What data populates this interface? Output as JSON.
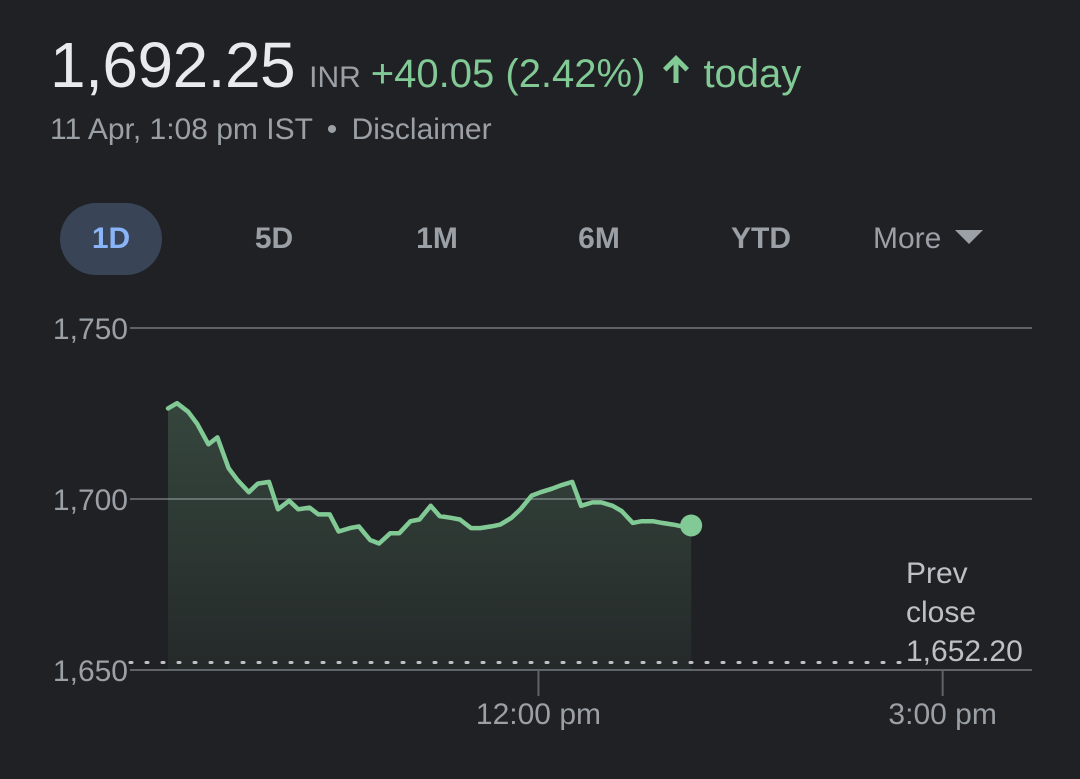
{
  "quote": {
    "price": "1,692.25",
    "currency": "INR",
    "change": "+40.05 (2.42%)",
    "direction_icon": "arrow-up-icon",
    "period": "today",
    "timestamp": "11 Apr, 1:08 pm IST",
    "separator": "•",
    "disclaimer": "Disclaimer"
  },
  "tabs": [
    {
      "label": "1D",
      "active": true
    },
    {
      "label": "5D",
      "active": false
    },
    {
      "label": "1M",
      "active": false
    },
    {
      "label": "6M",
      "active": false
    },
    {
      "label": "YTD",
      "active": false
    }
  ],
  "more": {
    "label": "More",
    "icon": "caret-down-icon"
  },
  "colors": {
    "positive": "#81c995",
    "active_tab_bg": "#394457",
    "active_tab_text": "#8ab4f8",
    "background": "#202124"
  },
  "chart_data": {
    "type": "area",
    "x_unit": "time (IST)",
    "xlim": [
      "09:15",
      "15:30"
    ],
    "ylim": [
      1650,
      1750
    ],
    "y_ticks": [
      {
        "value": 1650,
        "label": "1,650"
      },
      {
        "value": 1700,
        "label": "1,700"
      },
      {
        "value": 1750,
        "label": "1,750"
      }
    ],
    "x_ticks": [
      {
        "value": "12:00",
        "label": "12:00 pm"
      },
      {
        "value": "15:00",
        "label": "3:00 pm"
      }
    ],
    "prev_close": {
      "value": 1652.2,
      "label_lines": [
        "Prev",
        "close",
        "1,652.20"
      ]
    },
    "series": [
      {
        "x": [
          "09:15",
          "09:19",
          "09:24",
          "09:28",
          "09:33",
          "09:37",
          "09:42",
          "09:46",
          "09:51",
          "09:55",
          "10:00",
          "10:04",
          "10:09",
          "10:13",
          "10:18",
          "10:22",
          "10:27",
          "10:31",
          "10:36",
          "10:40",
          "10:45",
          "10:49",
          "10:54",
          "10:58",
          "11:03",
          "11:07",
          "11:12",
          "11:16",
          "11:21",
          "11:25",
          "11:30",
          "11:34",
          "11:39",
          "11:43",
          "11:48",
          "11:52",
          "11:57",
          "12:01",
          "12:06",
          "12:10",
          "12:15",
          "12:19",
          "12:24",
          "12:28",
          "12:33",
          "12:37",
          "12:42",
          "12:46",
          "12:51",
          "12:55",
          "13:00",
          "13:04",
          "13:08"
        ],
        "y": [
          1726.5,
          1728.0,
          1725.5,
          1722.0,
          1716.0,
          1718.0,
          1709.0,
          1705.5,
          1702.0,
          1704.5,
          1705.0,
          1697.0,
          1699.5,
          1697.0,
          1697.5,
          1695.5,
          1695.5,
          1690.5,
          1691.5,
          1692.0,
          1688.0,
          1687.0,
          1690.0,
          1690.0,
          1693.5,
          1694.0,
          1698.0,
          1695.0,
          1694.5,
          1694.0,
          1691.5,
          1691.5,
          1692.0,
          1692.5,
          1694.5,
          1697.0,
          1701.0,
          1702.0,
          1703.0,
          1704.0,
          1705.0,
          1698.0,
          1699.0,
          1699.0,
          1698.0,
          1696.5,
          1693.0,
          1693.5,
          1693.5,
          1693.0,
          1692.5,
          1692.0,
          1692.25
        ]
      }
    ],
    "last_point": {
      "x": "13:08",
      "y": 1692.25
    }
  }
}
